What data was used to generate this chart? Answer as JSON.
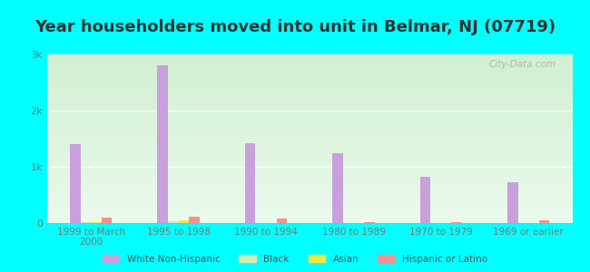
{
  "title": "Year householders moved into unit in Belmar, NJ (07719)",
  "categories": [
    "1999 to March\n2000",
    "1995 to 1998",
    "1990 to 1994",
    "1980 to 1989",
    "1970 to 1979",
    "1969 or earlier"
  ],
  "series": {
    "White Non-Hispanic": [
      1400,
      2800,
      1420,
      1250,
      820,
      730
    ],
    "Black": [
      15,
      25,
      8,
      8,
      8,
      8
    ],
    "Asian": [
      20,
      55,
      8,
      8,
      8,
      8
    ],
    "Hispanic or Latino": [
      90,
      105,
      75,
      18,
      15,
      50
    ]
  },
  "colors": {
    "White Non-Hispanic": "#c9a0dc",
    "Black": "#d4edb0",
    "Asian": "#f5e642",
    "Hispanic or Latino": "#f49090"
  },
  "bar_width": 0.12,
  "ylim": [
    0,
    3000
  ],
  "yticks": [
    0,
    1000,
    2000,
    3000
  ],
  "ytick_labels": [
    "0",
    "1k",
    "2k",
    "3k"
  ],
  "background_color": "#00ffff",
  "title_fontsize": 13,
  "title_color": "#333333",
  "watermark": "City-Data.com",
  "tick_label_color": "#777777",
  "legend_label_color": "#555555"
}
